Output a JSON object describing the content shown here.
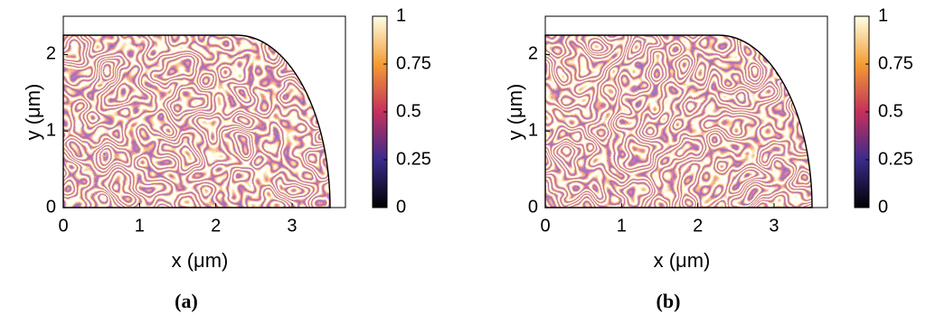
{
  "chart_data": [
    {
      "type": "heatmap",
      "caption": "(a)",
      "xlabel": "x (μm)",
      "ylabel": "y (μm)",
      "xlim": [
        0,
        3.7
      ],
      "ylim": [
        0,
        2.5
      ],
      "xticks": [
        0,
        1,
        2,
        3
      ],
      "yticks": [
        0,
        1,
        2
      ],
      "clim": [
        0,
        1
      ],
      "cticks": [
        0,
        0.25,
        0.5,
        0.75,
        1
      ],
      "colormap": [
        "#000000",
        "#3a2b8c",
        "#c4305c",
        "#f39c34",
        "#ffffe6"
      ]
    },
    {
      "type": "heatmap",
      "caption": "(b)",
      "xlabel": "x (μm)",
      "ylabel": "y (μm)",
      "xlim": [
        0,
        3.7
      ],
      "ylim": [
        0,
        2.5
      ],
      "xticks": [
        0,
        1,
        2,
        3
      ],
      "yticks": [
        0,
        1,
        2
      ],
      "clim": [
        0,
        1
      ],
      "cticks": [
        0,
        0.25,
        0.5,
        0.75,
        1
      ],
      "colormap": [
        "#000000",
        "#3a2b8c",
        "#c4305c",
        "#f39c34",
        "#ffffe6"
      ]
    }
  ]
}
